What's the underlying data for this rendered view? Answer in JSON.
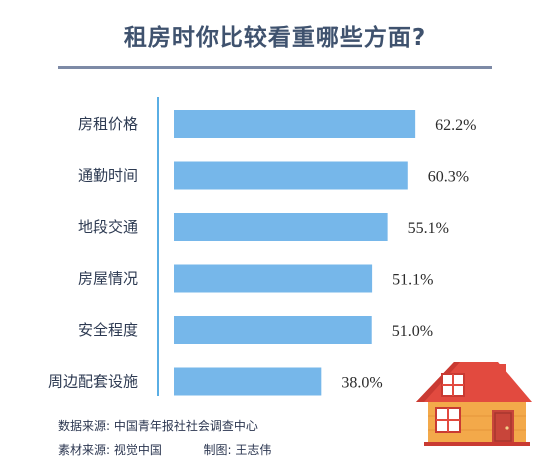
{
  "title": "租房时你比较看重哪些方面?",
  "chart_data": {
    "type": "bar",
    "orientation": "horizontal",
    "categories": [
      "房租价格",
      "通勤时间",
      "地段交通",
      "房屋情况",
      "安全程度",
      "周边配套设施"
    ],
    "values": [
      62.2,
      60.3,
      55.1,
      51.1,
      51.0,
      38.0
    ],
    "value_labels": [
      "62.2%",
      "60.3%",
      "55.1%",
      "51.1%",
      "51.0%",
      "38.0%"
    ],
    "unit": "%",
    "xlim": [
      0,
      65
    ],
    "bar_color": "#76b7ea",
    "axis_color": "#5aaee4",
    "grid": false,
    "legend": "none"
  },
  "footer": {
    "data_source_label": "数据来源:",
    "data_source": "中国青年报社社会调查中心",
    "material_label": "素材来源:",
    "material": "视觉中国",
    "design_label": "制图:",
    "designer": "王志伟"
  },
  "colors": {
    "title": "#3f526e",
    "rule": "#7d8aa6",
    "house_roof": "#e24a3f",
    "house_wall": "#f3a94a",
    "house_door": "#c8453a",
    "house_window": "#ffffff"
  },
  "icons": [
    "house-icon"
  ]
}
